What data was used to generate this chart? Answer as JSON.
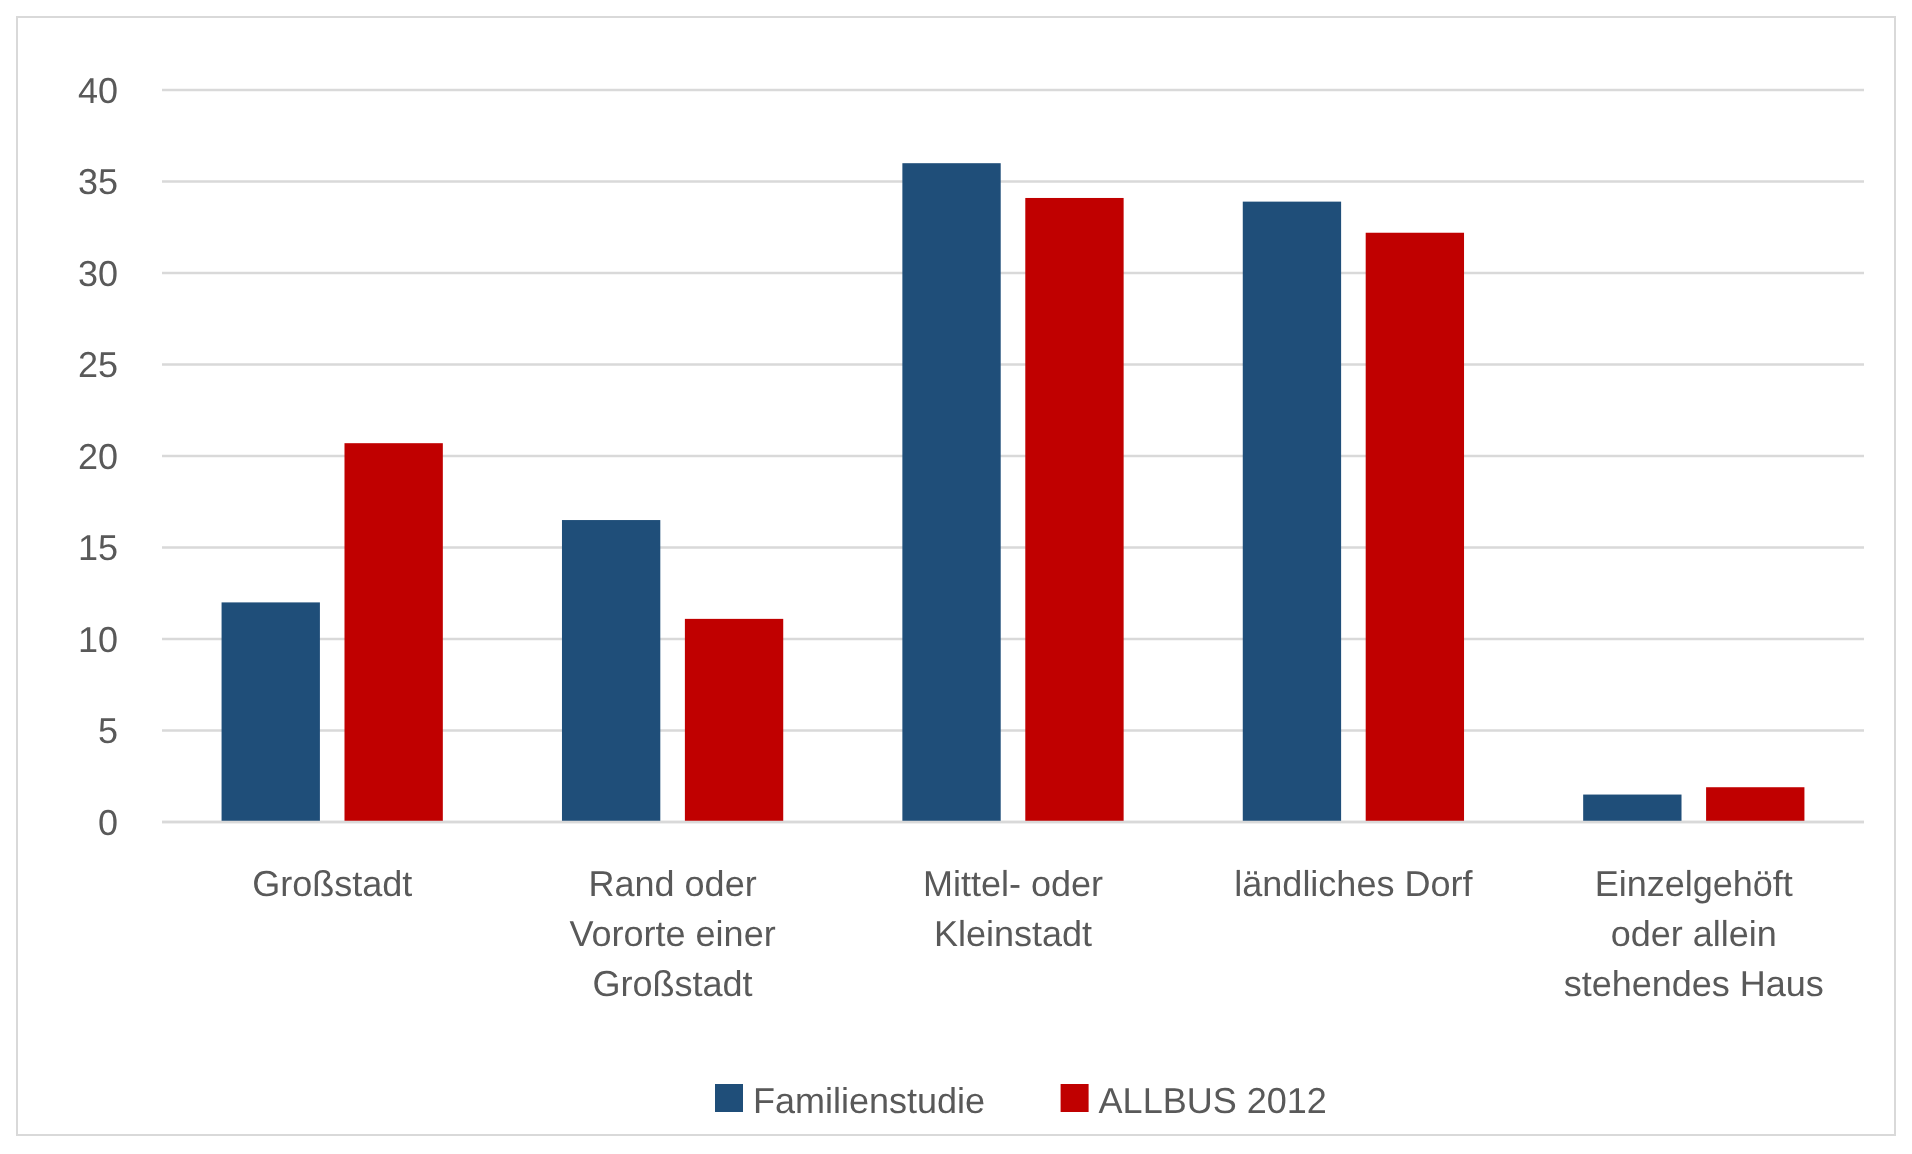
{
  "chart_data": {
    "type": "bar",
    "categories": [
      "Großstadt",
      "Rand oder Vororte einer Großstadt",
      "Mittel- oder Kleinstadt",
      "ländliches Dorf",
      "Einzelgehöft oder allein stehendes Haus"
    ],
    "series": [
      {
        "name": "Familienstudie",
        "color": "#1f4e79",
        "values": [
          12.0,
          16.5,
          36.0,
          33.9,
          1.5
        ]
      },
      {
        "name": "ALLBUS 2012",
        "color": "#c00000",
        "values": [
          20.7,
          11.1,
          34.1,
          32.2,
          1.9
        ]
      }
    ],
    "ylim": [
      0,
      40
    ],
    "yticks": [
      0,
      5,
      10,
      15,
      20,
      25,
      30,
      35,
      40
    ],
    "grid": "y",
    "legend": "bottom"
  }
}
